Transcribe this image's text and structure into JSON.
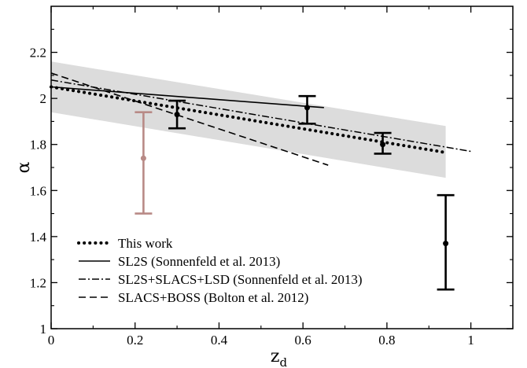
{
  "chart_data": {
    "type": "line",
    "xlabel": "z",
    "xlabel_sub": "d",
    "ylabel": "α",
    "xlim": [
      0,
      1.1
    ],
    "ylim": [
      1,
      2.4
    ],
    "x_ticks": [
      0,
      0.2,
      0.4,
      0.6,
      0.8,
      1
    ],
    "x_tick_labels": [
      "0",
      "0.2",
      "0.4",
      "0.6",
      "0.8",
      "1"
    ],
    "y_ticks": [
      1,
      1.2,
      1.4,
      1.6,
      1.8,
      2,
      2.2
    ],
    "y_tick_labels": [
      "1",
      "1.2",
      "1.4",
      "1.6",
      "1.8",
      "2",
      "2.2"
    ],
    "grid": false,
    "legend_position": "bottom-left",
    "band": {
      "x": [
        0,
        0.94
      ],
      "upper": [
        2.16,
        1.88
      ],
      "lower": [
        1.94,
        1.655
      ],
      "color": "#dcdcdc"
    },
    "series": [
      {
        "name": "This work",
        "style": "dotted",
        "x": [
          0,
          0.94
        ],
        "y": [
          2.05,
          1.765
        ]
      },
      {
        "name": "SL2S (Sonnenfeld et al. 2013)",
        "style": "solid",
        "x": [
          0,
          0.65
        ],
        "y": [
          2.05,
          1.96
        ]
      },
      {
        "name": "SL2S+SLACS+LSD (Sonnenfeld et al. 2013)",
        "style": "dashdot",
        "x": [
          0,
          1.0
        ],
        "y": [
          2.08,
          1.77
        ]
      },
      {
        "name": "SLACS+BOSS (Bolton et al. 2012)",
        "style": "dashed",
        "x": [
          0,
          0.66
        ],
        "y": [
          2.11,
          1.71
        ]
      }
    ],
    "points": [
      {
        "x": 0.3,
        "y": 1.93,
        "lo": 1.87,
        "hi": 1.99,
        "color": "#000000"
      },
      {
        "x": 0.61,
        "y": 1.96,
        "lo": 1.89,
        "hi": 2.01,
        "color": "#000000"
      },
      {
        "x": 0.79,
        "y": 1.8,
        "lo": 1.76,
        "hi": 1.85,
        "color": "#000000"
      },
      {
        "x": 0.94,
        "y": 1.37,
        "lo": 1.17,
        "hi": 1.58,
        "color": "#000000"
      },
      {
        "x": 0.22,
        "y": 1.74,
        "lo": 1.5,
        "hi": 1.94,
        "color": "#b88a86"
      }
    ]
  }
}
